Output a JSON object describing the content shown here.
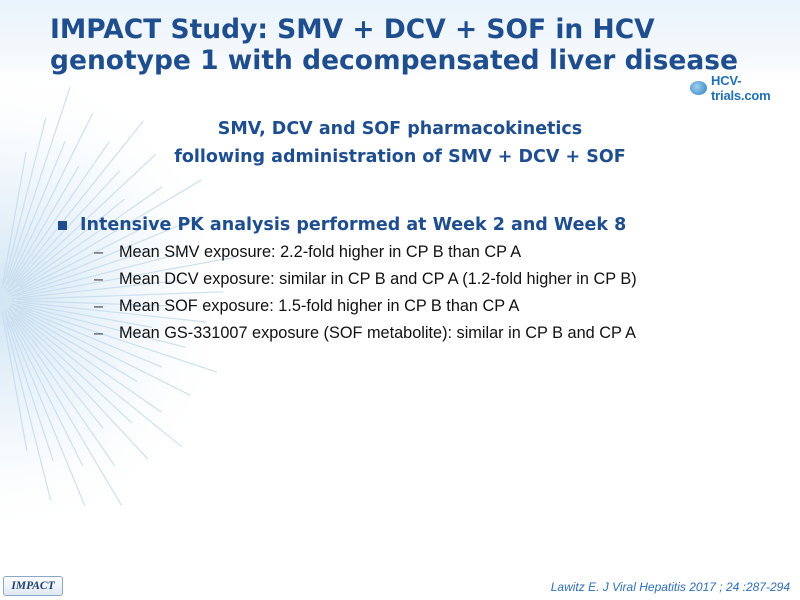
{
  "slide": {
    "title_line1": "IMPACT Study: SMV + DCV + SOF in HCV",
    "title_line2": "genotype 1 with decompensated liver disease",
    "logo_text": "HCV-trials.com",
    "subtitle_line1": "SMV, DCV and SOF pharmacokinetics",
    "subtitle_line2": "following administration of SMV + DCV + SOF",
    "bullet": "Intensive PK analysis performed at Week 2 and Week 8",
    "sub_bullets": [
      "Mean SMV exposure: 2.2-fold higher in CP B than CP A",
      "Mean DCV exposure: similar in CP B and CP A (1.2-fold higher in CP B)",
      "Mean SOF exposure: 1.5-fold higher in CP B than CP A",
      "Mean GS-331007 exposure (SOF metabolite): similar in CP B and CP A"
    ],
    "dash_glyph": "–",
    "footer_label": "IMPACT",
    "citation": "Lawitz  E. J Viral Hepatitis 2017 ; 24 :287-294"
  },
  "colors": {
    "title": "#1f4e8f",
    "citation": "#2d6fb7",
    "body_text": "#111111"
  }
}
